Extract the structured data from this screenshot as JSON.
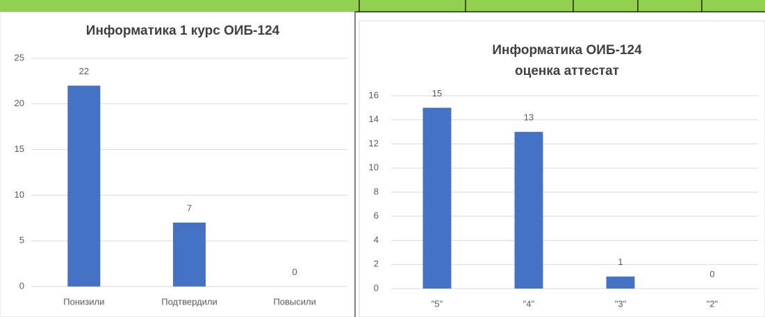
{
  "chart_data": [
    {
      "type": "bar",
      "title": [
        "Информатика 1 курс ОИБ-124"
      ],
      "categories": [
        "Понизили",
        "Подтвердили",
        "Повысили"
      ],
      "values": [
        22,
        7,
        0
      ],
      "color": "#4472c4",
      "ylim": [
        0,
        25
      ],
      "yticks": [
        0,
        5,
        10,
        15,
        20,
        25
      ],
      "grid": true
    },
    {
      "type": "bar",
      "title": [
        "Информатика ОИБ-124",
        "оценка аттестат"
      ],
      "categories": [
        "\"5\"",
        "\"4\"",
        "\"3\"",
        "\"2\""
      ],
      "values": [
        15,
        13,
        1,
        0
      ],
      "color": "#4472c4",
      "ylim": [
        0,
        16
      ],
      "yticks": [
        0,
        2,
        4,
        6,
        8,
        10,
        12,
        14,
        16
      ],
      "grid": true
    }
  ]
}
